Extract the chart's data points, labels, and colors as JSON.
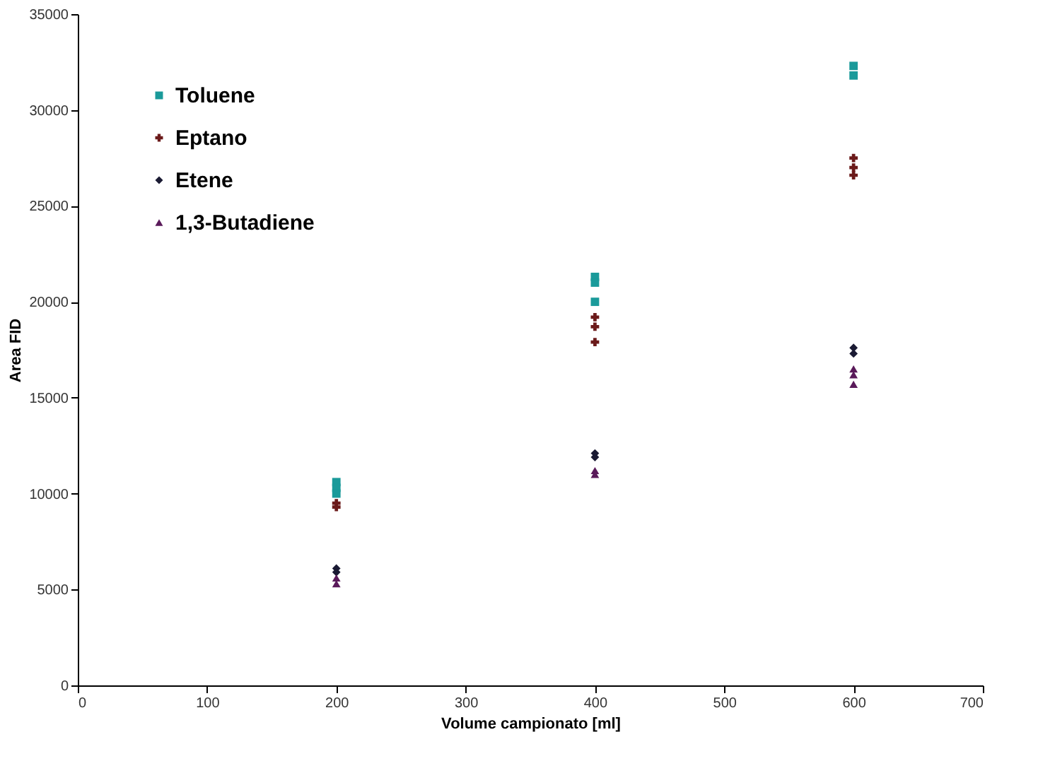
{
  "chart_data": {
    "type": "scatter",
    "xlabel": "Volume campionato [ml]",
    "ylabel": "Area  FID",
    "xlim": [
      0,
      700
    ],
    "xticks": [
      0,
      100,
      200,
      300,
      400,
      500,
      600,
      700
    ],
    "ylim": [
      0,
      35000
    ],
    "yticks": [
      0,
      5000,
      10000,
      15000,
      20000,
      25000,
      30000,
      35000
    ],
    "grid": false,
    "legend": "top left",
    "series": [
      {
        "name": "Toluene",
        "color": "#1a9a9a",
        "marker": "square",
        "x": [
          200,
          200,
          200,
          400,
          400,
          400,
          600,
          600
        ],
        "values": [
          10600,
          10300,
          10000,
          21300,
          21000,
          20000,
          32300,
          31800
        ]
      },
      {
        "name": "Eptano",
        "color": "#6b1a1a",
        "marker": "cross",
        "x": [
          200,
          200,
          400,
          400,
          400,
          600,
          600,
          600
        ],
        "values": [
          9500,
          9300,
          19200,
          18700,
          17900,
          27500,
          27000,
          26600
        ]
      },
      {
        "name": "Etene",
        "color": "#1a1a33",
        "marker": "diamond",
        "x": [
          200,
          200,
          400,
          400,
          600,
          600
        ],
        "values": [
          6100,
          5900,
          12100,
          11900,
          17600,
          17300
        ]
      },
      {
        "name": "1,3-Butadiene",
        "color": "#5a1a5a",
        "marker": "triangle",
        "x": [
          200,
          200,
          400,
          400,
          600,
          600,
          600
        ],
        "values": [
          5600,
          5300,
          11200,
          11000,
          16500,
          16200,
          15700
        ]
      }
    ]
  }
}
